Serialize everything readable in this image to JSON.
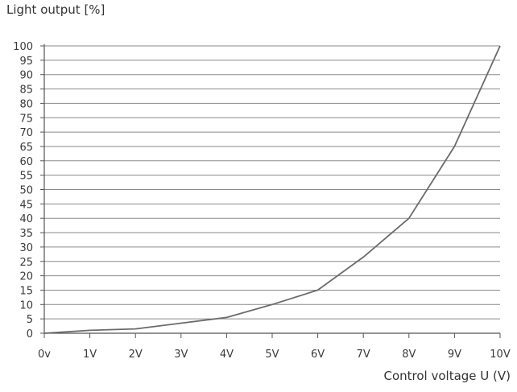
{
  "chart_data": {
    "type": "line",
    "title": "",
    "ylabel": "Light output [%]",
    "xlabel": "Control voltage U (V)",
    "x_tick_labels": [
      "0v",
      "1V",
      "2V",
      "3V",
      "4V",
      "5V",
      "6V",
      "7V",
      "8V",
      "9V",
      "10V"
    ],
    "y_tick_labels": [
      "0",
      "5",
      "10",
      "15",
      "20",
      "25",
      "30",
      "35",
      "40",
      "45",
      "50",
      "55",
      "60",
      "65",
      "70",
      "75",
      "80",
      "85",
      "90",
      "95",
      "100"
    ],
    "xlim": [
      0,
      10
    ],
    "ylim": [
      0,
      100
    ],
    "grid": "horizontal",
    "series": [
      {
        "x": [
          0,
          1,
          2,
          3,
          4,
          5,
          6,
          7,
          8,
          9,
          10
        ],
        "values": [
          0,
          1,
          1.5,
          3.5,
          5.5,
          10,
          15,
          26.5,
          40,
          65,
          100
        ]
      }
    ],
    "colors": {
      "line": "#6b6b6b",
      "grid": "#8a8a8a",
      "axis": "#555555",
      "text": "#3a3a3a"
    }
  }
}
